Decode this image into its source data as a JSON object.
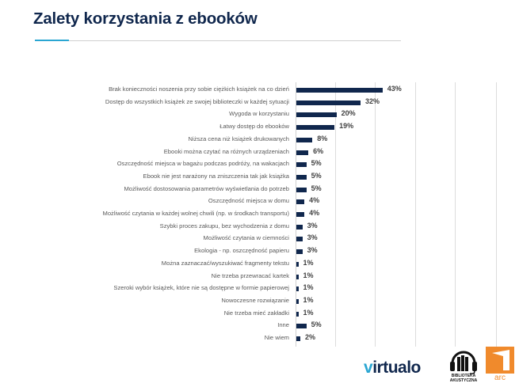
{
  "page": {
    "title": "Zalety korzystania z ebooków"
  },
  "chart_data": {
    "type": "bar",
    "orientation": "horizontal",
    "title": "Zalety korzystania z ebooków",
    "xlabel": "",
    "ylabel": "",
    "xlim": [
      0,
      100
    ],
    "grid": true,
    "grid_step": 20,
    "legend": "none",
    "bar_color": "#10274d",
    "categories": [
      "Brak konieczności noszenia przy sobie ciężkich książek na co dzień",
      "Dostęp do wszystkich książek ze swojej biblioteczki w każdej sytuacji",
      "Wygoda w korzystaniu",
      "Łatwy dostęp do ebooków",
      "Niższa cena niż książek drukowanych",
      "Ebooki można czytać na różnych urządzeniach",
      "Oszczędność miejsca w bagażu podczas podróży, na wakacjach",
      "Ebook nie jest narażony na zniszczenia tak jak książka",
      "Możliwość dostosowania parametrów wyświetlania do potrzeb",
      "Oszczędność miejsca w domu",
      "Możliwość czytania w każdej wolnej chwili (np. w środkach transportu)",
      "Szybki proces zakupu, bez wychodzenia z domu",
      "Możliwość czytania w ciemności",
      "Ekologia - np. oszczędność papieru",
      "Można zaznaczać/wyszukiwać fragmenty tekstu",
      "Nie trzeba przewracać kartek",
      "Szeroki wybór książek, które nie są dostępne w formie papierowej",
      "Nowoczesne rozwiązanie",
      "Nie trzeba mieć zakładki",
      "Inne",
      "Nie wiem"
    ],
    "values": [
      43,
      32,
      20,
      19,
      8,
      6,
      5,
      5,
      5,
      4,
      4,
      3,
      3,
      3,
      1,
      1,
      1,
      1,
      1,
      5,
      2
    ],
    "value_labels": [
      "43%",
      "32%",
      "20%",
      "19%",
      "8%",
      "6%",
      "5%",
      "5%",
      "5%",
      "4%",
      "4%",
      "3%",
      "3%",
      "3%",
      "1%",
      "1%",
      "1%",
      "1%",
      "1%",
      "5%",
      "2%"
    ]
  },
  "logos": {
    "virtualo_prefix": "v",
    "virtualo_rest": "irtualo",
    "biblioteka_line1": "BIBLIOTEKA",
    "biblioteka_line2": "AKUSTYCZNA",
    "arc": "arc"
  },
  "colors": {
    "title": "#10274d",
    "bar": "#10274d",
    "accent": "#2aa6d2",
    "arc_orange": "#f08a2c"
  }
}
